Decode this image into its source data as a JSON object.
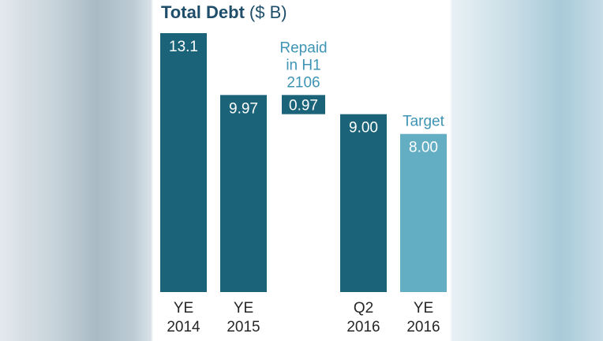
{
  "colors": {
    "bar_dark": "#1b6379",
    "bar_light": "#64aec4",
    "annotation_text": "#3e94b4",
    "axis_text": "#262626",
    "title_text": "#1f4e6b"
  },
  "chart_data": {
    "type": "bar",
    "title": "Total Debt",
    "title_unit": "($ B)",
    "xlabel": "",
    "ylabel": "",
    "ylim": [
      0,
      13.1
    ],
    "grid": false,
    "legend": "none",
    "categories": [
      {
        "line1": "YE",
        "line2": "2014"
      },
      {
        "line1": "YE",
        "line2": "2015"
      },
      {
        "line1": "",
        "line2": ""
      },
      {
        "line1": "Q2",
        "line2": "2016"
      },
      {
        "line1": "YE",
        "line2": "2016"
      }
    ],
    "bars": [
      {
        "kind": "total",
        "value": 13.1,
        "label": "13.1",
        "style": "dark"
      },
      {
        "kind": "total",
        "value": 9.97,
        "label": "9.97",
        "style": "dark"
      },
      {
        "kind": "floating",
        "value": 0.97,
        "label": "0.97",
        "style": "dark",
        "annotation": [
          "Repaid",
          "in H1",
          "2106"
        ]
      },
      {
        "kind": "total",
        "value": 9.0,
        "label": "9.00",
        "style": "dark"
      },
      {
        "kind": "total",
        "value": 8.0,
        "label": "8.00",
        "style": "light",
        "annotation": [
          "Target"
        ]
      }
    ]
  }
}
